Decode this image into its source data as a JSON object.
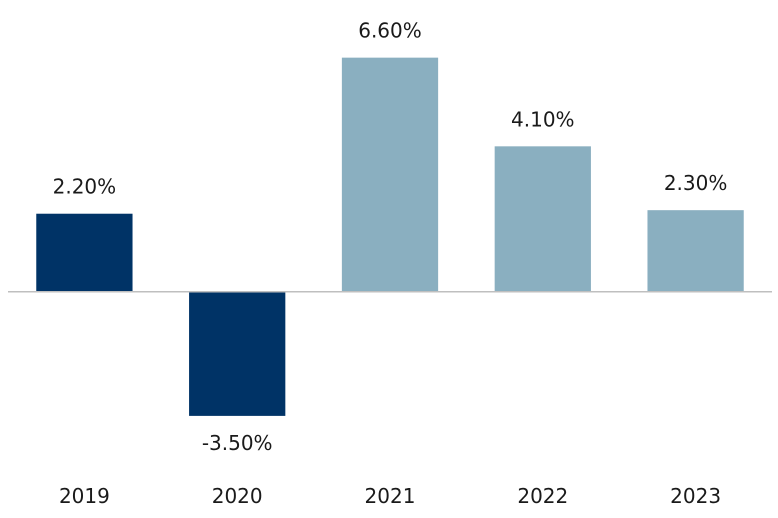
{
  "chart_data": {
    "type": "bar",
    "title": "",
    "xlabel": "",
    "ylabel": "",
    "categories": [
      "2019",
      "2020",
      "2021",
      "2022",
      "2023"
    ],
    "values": [
      2.2,
      -3.5,
      6.6,
      4.1,
      2.3
    ],
    "value_labels": [
      "2.20%",
      "-3.50%",
      "6.60%",
      "4.10%",
      "2.30%"
    ],
    "ylim": [
      -4.8,
      8.0
    ],
    "grid": false,
    "legend": "none",
    "colors": {
      "actual": "#003366",
      "forecast": "#8aafc0",
      "baseline": "#bfbfbf"
    },
    "bar_color_groups": [
      "actual",
      "actual",
      "forecast",
      "forecast",
      "forecast"
    ]
  }
}
